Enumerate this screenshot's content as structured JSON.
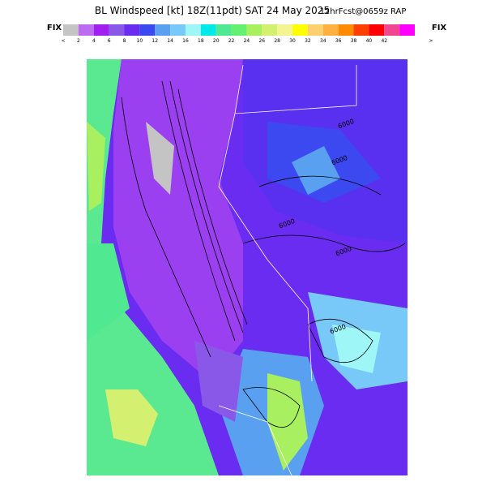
{
  "header": {
    "title": "BL Windspeed [kt] 18Z(11pdt) SAT 24 May 2025",
    "forecast": "12hrFcst@0659z RAP"
  },
  "colorbar": {
    "left_label": "FIX",
    "right_label": "FIX",
    "tick_labels": [
      "<",
      "2",
      "4",
      "6",
      "8",
      "10",
      "12",
      "14",
      "16",
      "18",
      "20",
      "22",
      "24",
      "26",
      "28",
      "30",
      "32",
      "34",
      "36",
      "38",
      "40",
      "42",
      ">"
    ],
    "colors": [
      "#c4c4c4",
      "#bb6cf0",
      "#a020f0",
      "#8a58e8",
      "#6a2cf0",
      "#3c48f0",
      "#5aa0f0",
      "#78c8f8",
      "#9ef6f6",
      "#00e8e8",
      "#50e890",
      "#64f070",
      "#a8f060",
      "#d4f070",
      "#f4f490",
      "#ffff00",
      "#ffd070",
      "#ffb040",
      "#ff8c00",
      "#ff4000",
      "#ff0000",
      "#f04890",
      "#ff00ff"
    ]
  },
  "map": {
    "contour_labels": [
      "6000",
      "6000",
      "6000",
      "6000",
      "6000"
    ]
  }
}
